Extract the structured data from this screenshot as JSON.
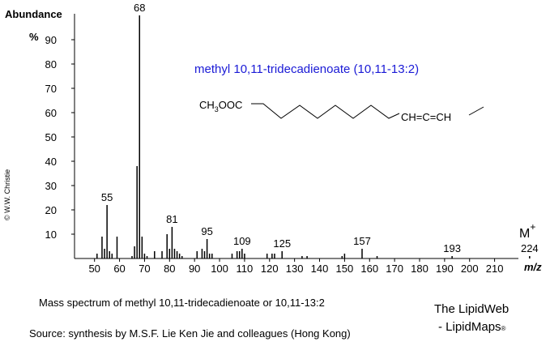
{
  "chart_data": {
    "type": "bar",
    "title": "methyl 10,11-tridecadienoate  (10,11-13:2)",
    "y_label": [
      "Abundance",
      "%"
    ],
    "x_label": "m/z",
    "structure": {
      "left": [
        "CH",
        "3",
        "OOC"
      ],
      "right": "CH=C=CH"
    },
    "molecular_ion": {
      "label": "M",
      "sup": "+"
    },
    "color": "#000000",
    "x": [
      51,
      53,
      54,
      55,
      56,
      57,
      59,
      65,
      66,
      67,
      68,
      69,
      70,
      71,
      74,
      77,
      79,
      80,
      81,
      82,
      83,
      84,
      85,
      91,
      93,
      94,
      95,
      96,
      97,
      105,
      107,
      108,
      109,
      110,
      119,
      121,
      122,
      125,
      133,
      135,
      149,
      150,
      157,
      163,
      193,
      224
    ],
    "values": [
      2,
      9,
      4,
      22,
      3,
      2,
      9,
      1,
      5,
      38,
      100,
      9,
      2,
      1,
      3,
      3,
      10,
      4,
      13,
      4,
      3,
      2,
      1,
      3,
      4,
      3,
      8,
      2,
      2,
      2,
      3,
      3,
      4,
      2,
      2,
      2,
      2,
      3,
      1,
      1,
      1,
      2,
      4,
      1,
      1,
      1
    ],
    "labeled": [
      false,
      false,
      false,
      true,
      false,
      false,
      false,
      false,
      false,
      false,
      true,
      false,
      false,
      false,
      false,
      false,
      false,
      false,
      true,
      false,
      false,
      false,
      false,
      false,
      false,
      false,
      true,
      false,
      false,
      false,
      false,
      false,
      true,
      false,
      false,
      false,
      false,
      true,
      false,
      false,
      false,
      false,
      true,
      false,
      true,
      true
    ],
    "xlim": [
      42,
      226
    ],
    "ylim": [
      0,
      100
    ],
    "xticks": [
      50,
      60,
      70,
      80,
      90,
      100,
      110,
      120,
      130,
      140,
      150,
      160,
      170,
      180,
      190,
      200,
      210
    ],
    "yticks": [
      10,
      20,
      30,
      40,
      50,
      60,
      70,
      80,
      90
    ]
  },
  "caption": "Mass spectrum of methyl 10,11-tridecadienoate or 10,11-13:2",
  "source": "Source: synthesis by M.S.F. Lie Ken Jie and colleagues (Hong Kong)",
  "credit": [
    "The LipidWeb",
    "- LipidMaps",
    "®"
  ],
  "copyright": "© W.W. Christie"
}
